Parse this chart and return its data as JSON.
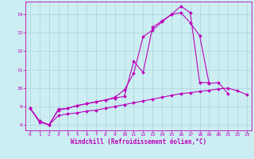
{
  "xlabel": "Windchill (Refroidissement éolien,°C)",
  "bg_color": "#cceef2",
  "line_color": "#bb00bb",
  "grid_color": "#aad4d8",
  "xlim": [
    -0.5,
    23.5
  ],
  "ylim": [
    7.7,
    14.7
  ],
  "yticks": [
    8,
    9,
    10,
    11,
    12,
    13,
    14
  ],
  "xticks": [
    0,
    1,
    2,
    3,
    4,
    5,
    6,
    7,
    8,
    9,
    10,
    11,
    12,
    13,
    14,
    15,
    16,
    17,
    18,
    19,
    20,
    21,
    22,
    23
  ],
  "line1_x": [
    0,
    1,
    2,
    3,
    4,
    5,
    6,
    7,
    8,
    9,
    10,
    11,
    12,
    13,
    14,
    15,
    16,
    17,
    18,
    19,
    20,
    21
  ],
  "line1_y": [
    8.9,
    8.2,
    8.0,
    8.8,
    8.9,
    9.05,
    9.15,
    9.25,
    9.35,
    9.5,
    9.9,
    10.8,
    12.8,
    13.15,
    13.6,
    14.0,
    14.1,
    13.55,
    12.85,
    10.25,
    10.3,
    9.7
  ],
  "line2_x": [
    0,
    1,
    2,
    3,
    4,
    5,
    6,
    7,
    8,
    9,
    10,
    11,
    12,
    13,
    14,
    15,
    16,
    17,
    18,
    19,
    20,
    21,
    22,
    23
  ],
  "line2_y": [
    8.9,
    8.2,
    8.0,
    8.5,
    8.6,
    8.65,
    8.75,
    8.8,
    8.9,
    9.0,
    9.1,
    9.2,
    9.3,
    9.4,
    9.5,
    9.6,
    9.7,
    9.75,
    9.82,
    9.88,
    9.95,
    10.0,
    9.85,
    9.65
  ],
  "line3_x": [
    0,
    1,
    2,
    3,
    4,
    5,
    6,
    7,
    8,
    9,
    10,
    11,
    12,
    13,
    14,
    15,
    16,
    17,
    18,
    19,
    20,
    21,
    22,
    23
  ],
  "line3_y": [
    8.9,
    8.15,
    8.0,
    8.85,
    8.9,
    9.05,
    9.15,
    9.25,
    9.35,
    9.45,
    9.55,
    11.45,
    10.85,
    13.3,
    13.65,
    14.0,
    14.45,
    14.1,
    10.3,
    10.3,
    null,
    null,
    null,
    null
  ],
  "markersize": 2.0,
  "linewidth": 0.8,
  "xlabel_fontsize": 5.5,
  "tick_fontsize": 4.5
}
